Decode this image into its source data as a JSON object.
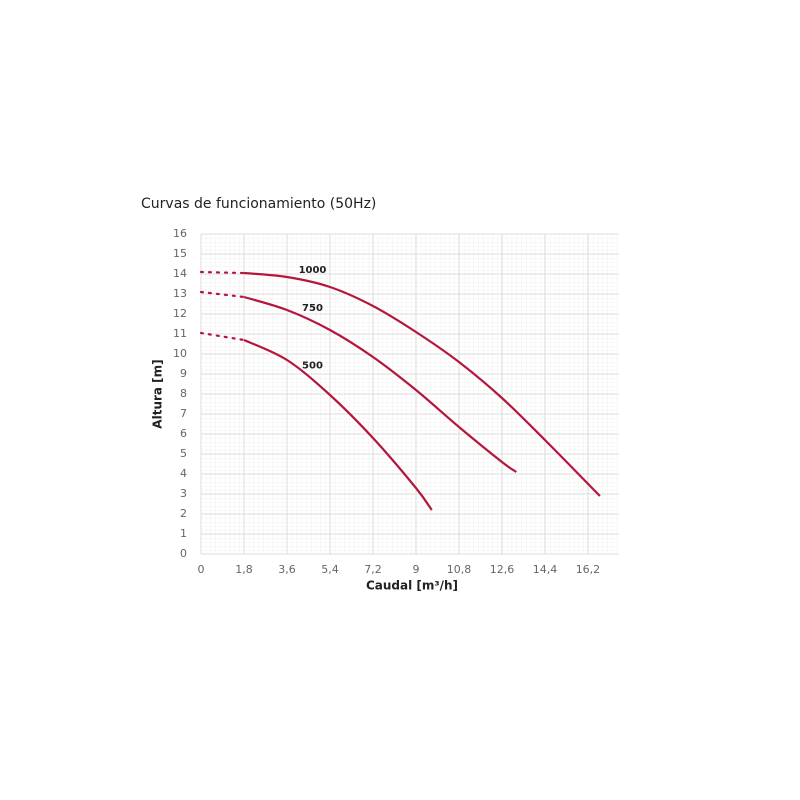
{
  "chart_data": {
    "type": "line",
    "title": "Curvas de funcionamiento (50Hz)",
    "x_label": "Caudal [m³/h]",
    "y_label": "Altura [m]",
    "xlim": [
      0,
      17.5
    ],
    "ylim": [
      0,
      16
    ],
    "xticks": [
      0,
      {
        "value": 1.8,
        "label": "1,8"
      },
      {
        "value": 3.6,
        "label": "3,6"
      },
      {
        "value": 5.4,
        "label": "5,4"
      },
      {
        "value": 7.2,
        "label": "7,2"
      },
      9,
      {
        "value": 10.8,
        "label": "10,8"
      },
      {
        "value": 12.6,
        "label": "12,6"
      },
      {
        "value": 14.4,
        "label": "14,4"
      },
      {
        "value": 16.2,
        "label": "16,2"
      }
    ],
    "yticks": [
      0,
      1,
      2,
      3,
      4,
      5,
      6,
      7,
      8,
      9,
      10,
      11,
      12,
      13,
      14,
      15,
      16
    ],
    "grid": true,
    "series": [
      {
        "name": "1000",
        "color": "#b5163c",
        "dotted": {
          "x": [
            0,
            1.8
          ],
          "values": [
            14.1,
            14.05
          ]
        },
        "x": [
          1.8,
          3.6,
          5.4,
          7.2,
          9,
          10.8,
          12.6,
          14.4,
          16.7
        ],
        "values": [
          14.05,
          13.85,
          13.35,
          12.4,
          11.1,
          9.6,
          7.8,
          5.7,
          2.9
        ]
      },
      {
        "name": "750",
        "color": "#b5163c",
        "dotted": {
          "x": [
            0,
            1.8
          ],
          "values": [
            13.1,
            12.85
          ]
        },
        "x": [
          1.8,
          3.6,
          5.4,
          7.2,
          9,
          10.8,
          12.6,
          13.2
        ],
        "values": [
          12.85,
          12.2,
          11.2,
          9.85,
          8.2,
          6.35,
          4.6,
          4.1
        ]
      },
      {
        "name": "500",
        "color": "#b5163c",
        "dotted": {
          "x": [
            0,
            1.8
          ],
          "values": [
            11.05,
            10.7
          ]
        },
        "x": [
          1.8,
          3.6,
          5.4,
          7.2,
          9,
          9.66
        ],
        "values": [
          10.7,
          9.7,
          7.95,
          5.8,
          3.3,
          2.2
        ]
      }
    ]
  }
}
